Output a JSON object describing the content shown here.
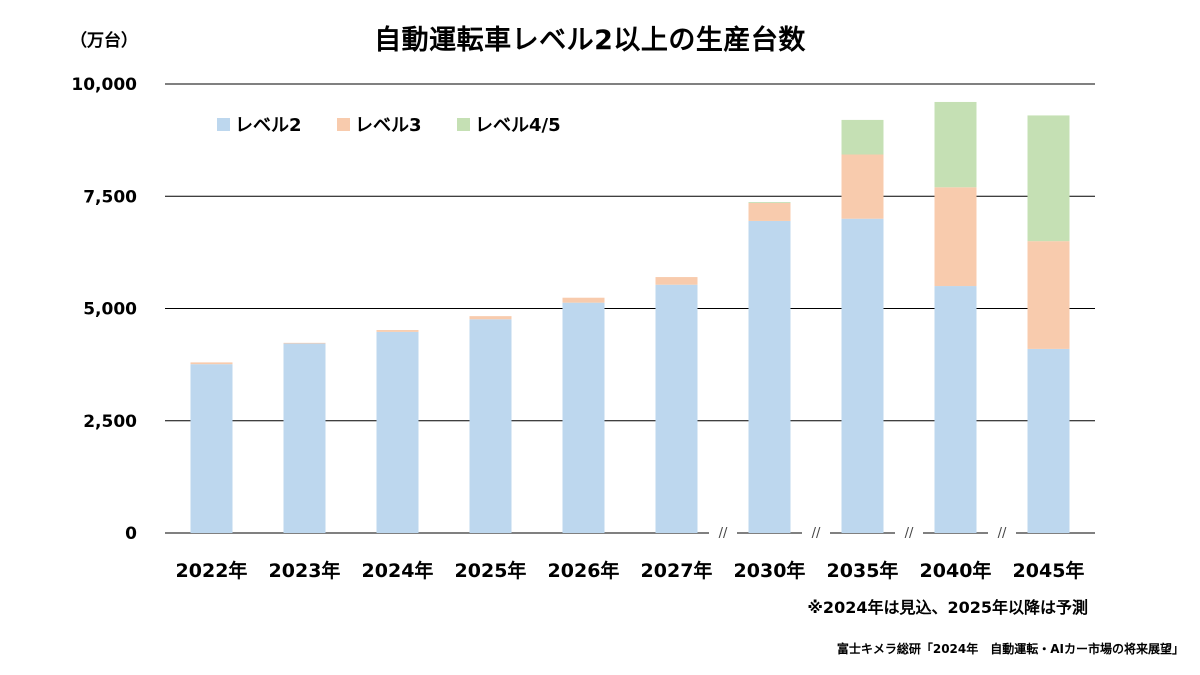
{
  "chart_data": {
    "type": "bar",
    "stacked": true,
    "title": "自動運転車レベル2以上の生産台数",
    "unit_label": "（万台）",
    "categories": [
      "2022年",
      "2023年",
      "2024年",
      "2025年",
      "2026年",
      "2027年",
      "2030年",
      "2035年",
      "2040年",
      "2045年"
    ],
    "series": [
      {
        "name": "レベル2",
        "color": "#bdd7ee",
        "values": [
          3760,
          4220,
          4480,
          4760,
          5130,
          5530,
          6950,
          7000,
          5500,
          4100
        ]
      },
      {
        "name": "レベル3",
        "color": "#f8cbad",
        "values": [
          40,
          15,
          40,
          70,
          110,
          170,
          400,
          1430,
          2200,
          2400
        ]
      },
      {
        "name": "レベル4/5",
        "color": "#c5e0b4",
        "values": [
          0,
          0,
          0,
          0,
          0,
          0,
          20,
          770,
          1900,
          2800
        ]
      }
    ],
    "ylim": [
      0,
      10000
    ],
    "yticks": [
      0,
      2500,
      5000,
      7500,
      10000
    ],
    "ytick_labels": [
      "0",
      "2,500",
      "5,000",
      "7,500",
      "10,000"
    ],
    "break_marks_before": [
      "2030年",
      "2035年",
      "2040年",
      "2045年"
    ],
    "break_mark_text": "//",
    "gridlines": true,
    "legend_position": "top-left",
    "note": "※2024年は見込、2025年以降は予測",
    "source": "富士キメラ総研「2024年　自動運転・AIカー市場の将来展望」"
  }
}
